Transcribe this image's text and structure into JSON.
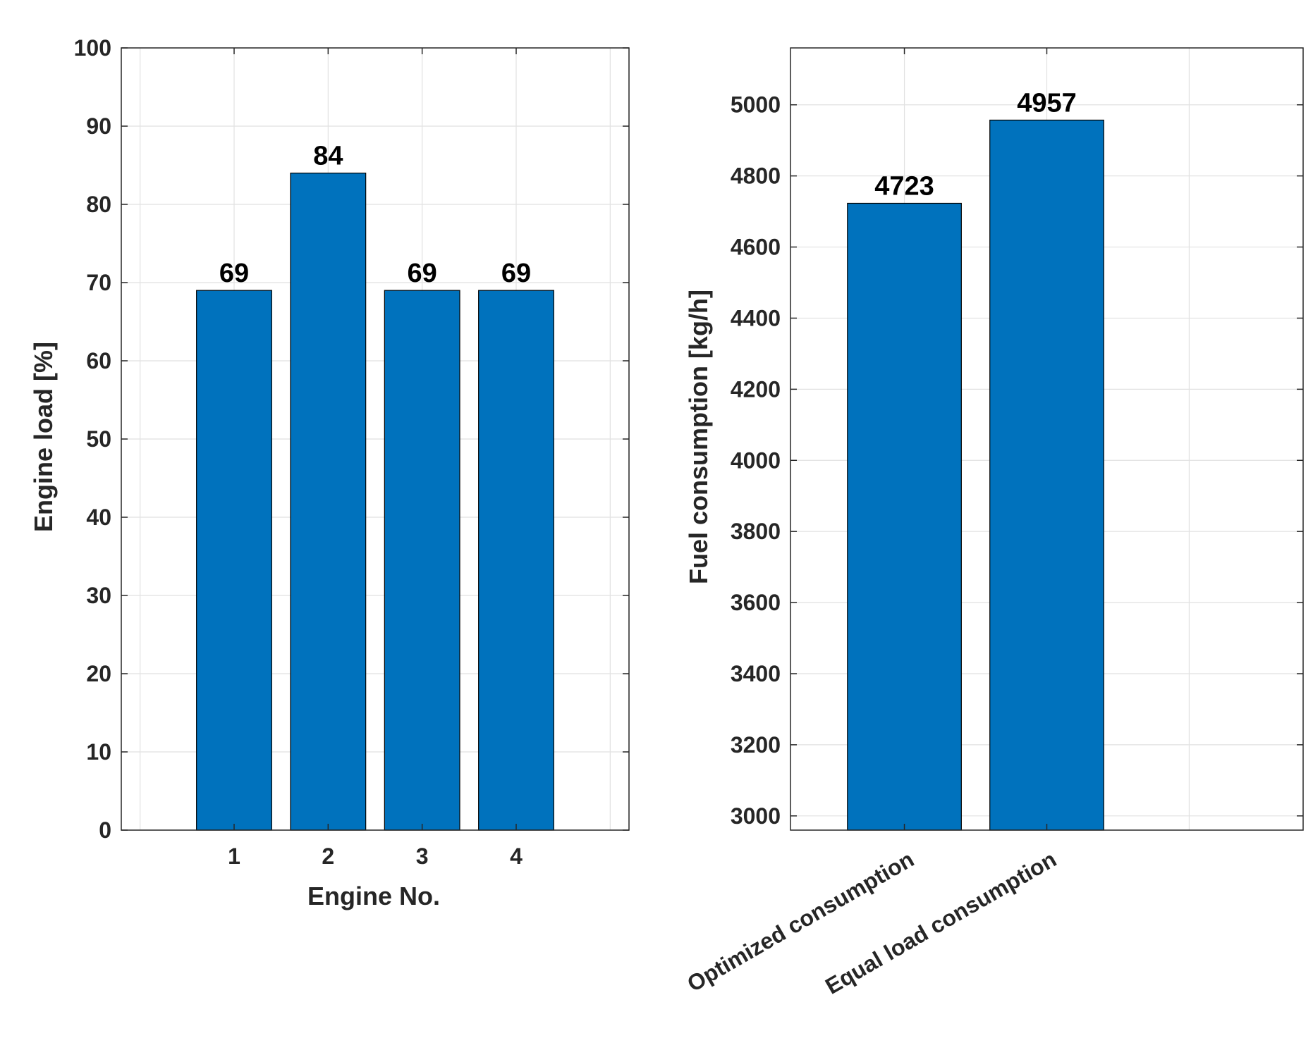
{
  "chart_data": [
    {
      "type": "bar",
      "categories": [
        "1",
        "2",
        "3",
        "4"
      ],
      "values": [
        69,
        84,
        69,
        69
      ],
      "data_labels": [
        "69",
        "84",
        "69",
        "69"
      ],
      "xlabel": "Engine No.",
      "ylabel": "Engine load [%]",
      "ylim": [
        0,
        100
      ],
      "yticks": [
        0,
        10,
        20,
        30,
        40,
        50,
        60,
        70,
        80,
        90,
        100
      ],
      "x_range": [
        -0.2,
        5.2
      ],
      "grid": true,
      "bar_color": "#0072BD"
    },
    {
      "type": "bar",
      "categories": [
        "Optimized consumption",
        "Equal load consumption"
      ],
      "values": [
        4723,
        4957
      ],
      "data_labels": [
        "4723",
        "4957"
      ],
      "xlabel": "",
      "ylabel": "Fuel consumption [kg/h]",
      "ylim": [
        2960,
        5160
      ],
      "yticks": [
        3000,
        3200,
        3400,
        3600,
        3800,
        4000,
        4200,
        4400,
        4600,
        4800,
        5000
      ],
      "x_range": [
        0.2,
        3.8
      ],
      "grid": true,
      "bar_color": "#0072BD"
    }
  ]
}
